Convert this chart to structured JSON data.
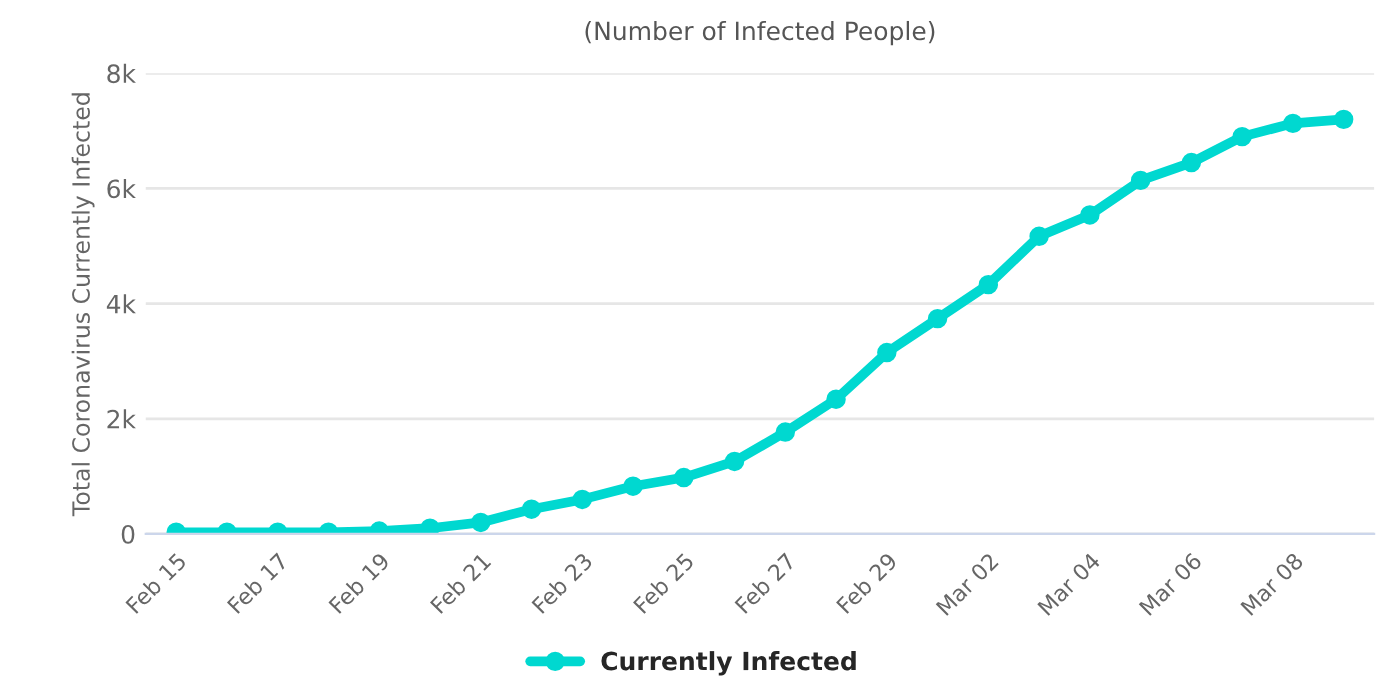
{
  "chart_data": {
    "type": "line",
    "title": "(Number of Infected People)",
    "ylabel": "Total Coronavirus Currently Infected",
    "categories": [
      "Feb 15",
      null,
      "Feb 17",
      null,
      "Feb 19",
      null,
      "Feb 21",
      null,
      "Feb 23",
      null,
      "Feb 25",
      null,
      "Feb 27",
      null,
      "Feb 29",
      null,
      "Mar 02",
      null,
      "Mar 04",
      null,
      "Mar 06",
      null,
      "Mar 08",
      null
    ],
    "series": [
      {
        "name": "Currently Infected",
        "color": "#00d8d0",
        "values": [
          30,
          30,
          30,
          30,
          50,
          100,
          200,
          430,
          600,
          830,
          980,
          1260,
          1770,
          2340,
          3150,
          3740,
          4330,
          5170,
          5540,
          6140,
          6450,
          6900,
          7130,
          7200
        ]
      }
    ],
    "ylim": [
      0,
      8000
    ],
    "yticks": [
      0,
      {
        "value": 2000,
        "label": "2k"
      },
      {
        "value": 4000,
        "label": "4k"
      },
      {
        "value": 6000,
        "label": "6k"
      },
      {
        "value": 8000,
        "label": "8k"
      }
    ],
    "grid": "y",
    "legend": "bottom",
    "marker": "circle",
    "line_style": "solid"
  }
}
